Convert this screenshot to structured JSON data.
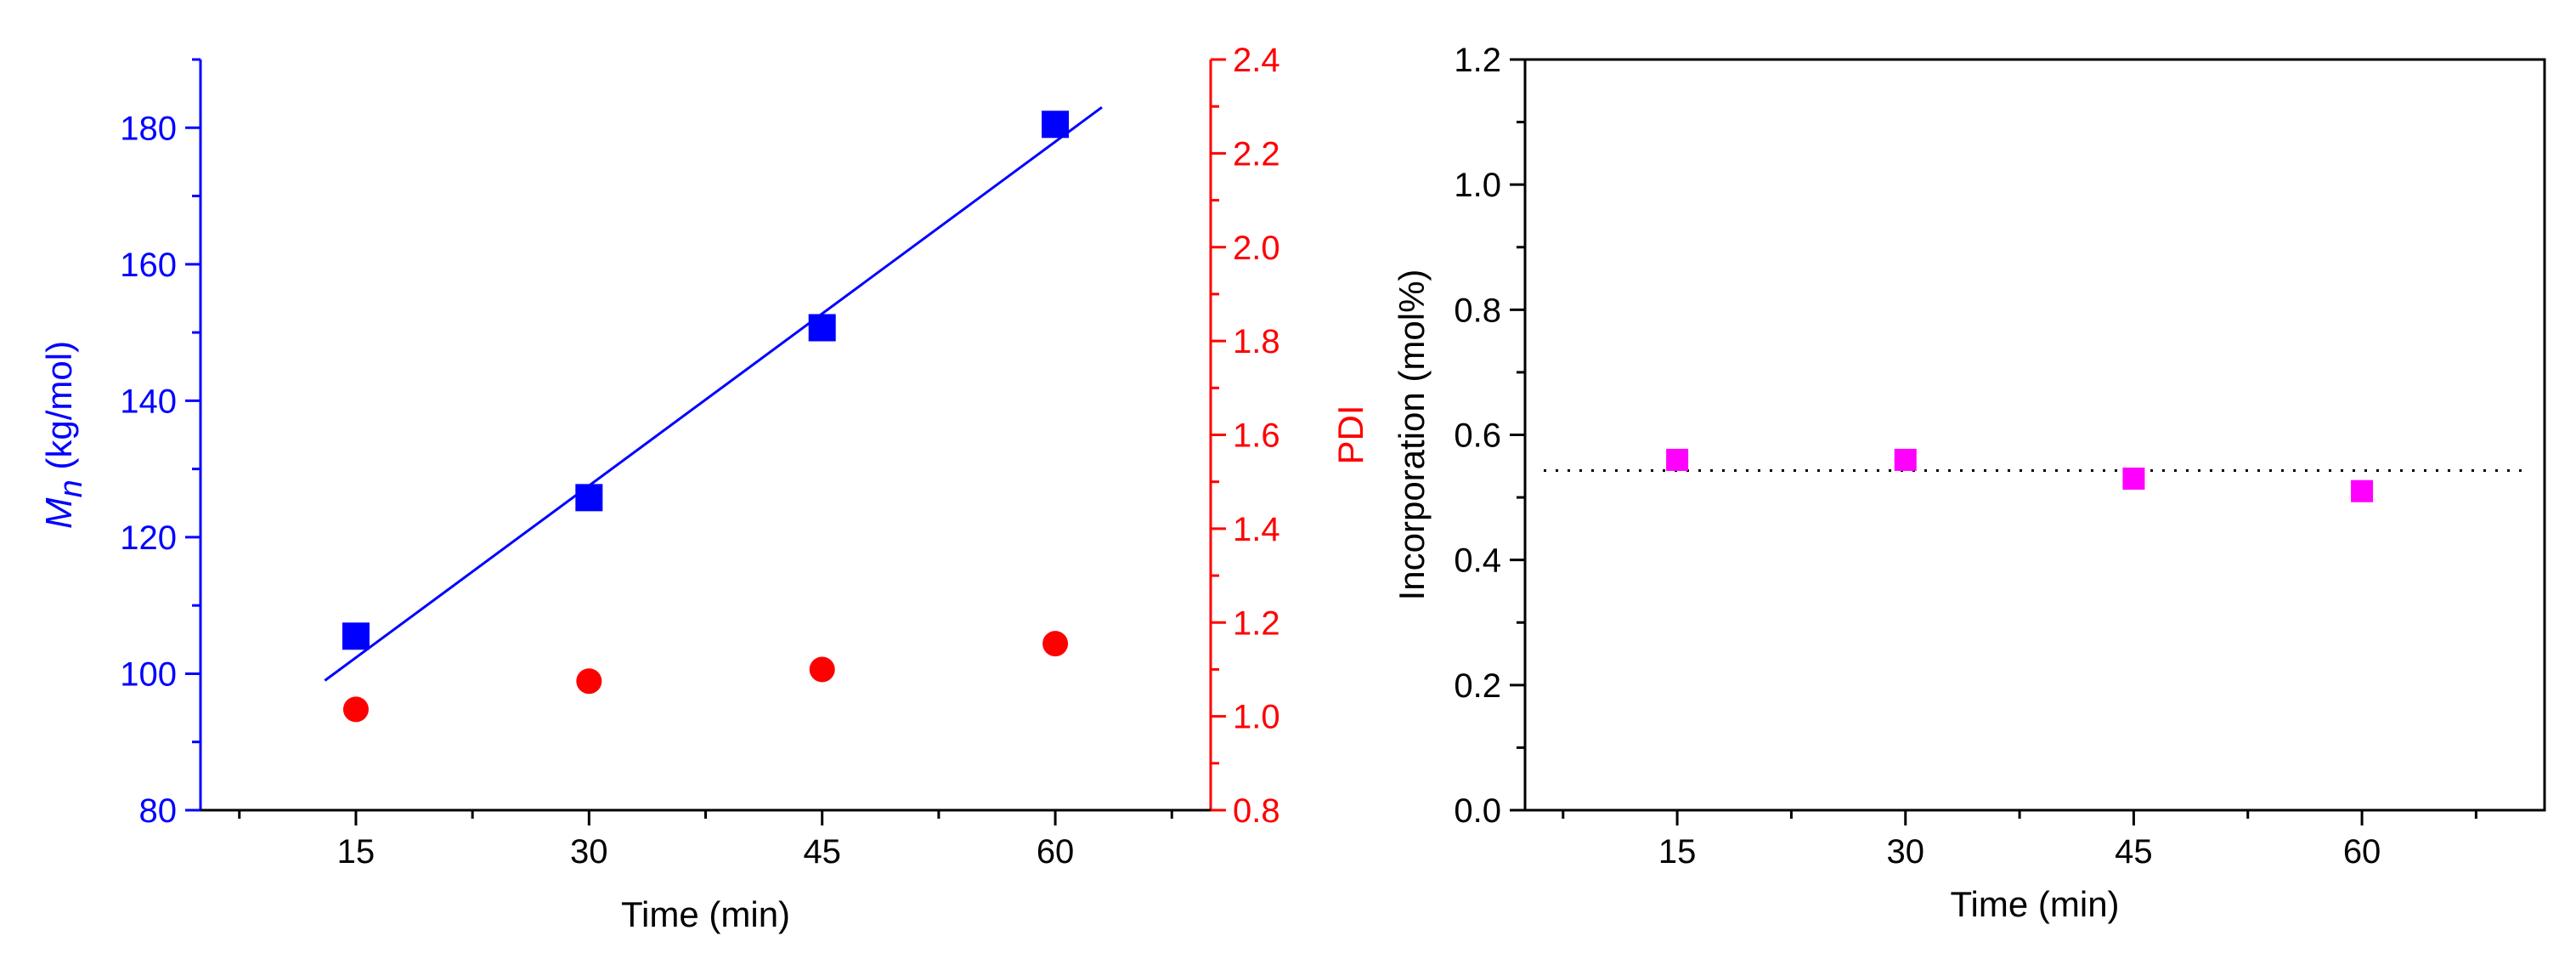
{
  "chart_data": [
    {
      "type": "scatter",
      "xlabel": "Time (min)",
      "ylabel_italic": "M",
      "ylabel_sub": "n",
      "ylabel_rest": " (kg/mol)",
      "y2label": "PDI",
      "xlim": [
        5,
        70
      ],
      "ylim": [
        80,
        190
      ],
      "y2lim": [
        0.8,
        2.4
      ],
      "xticks": [
        15,
        30,
        45,
        60
      ],
      "yticks": [
        80,
        100,
        120,
        140,
        160,
        180
      ],
      "y2ticks": [
        0.8,
        1.0,
        1.2,
        1.4,
        1.6,
        1.8,
        2.0,
        2.2,
        2.4
      ],
      "colors": {
        "mn": "#0000ff",
        "pdi": "#ff0000",
        "frame": "#000000"
      },
      "series": [
        {
          "axis": "left",
          "marker": "square",
          "x": [
            15,
            30,
            45,
            60
          ],
          "values": [
            105.5,
            125.8,
            150.7,
            180.5
          ]
        },
        {
          "axis": "right",
          "marker": "circle",
          "x": [
            15,
            30,
            45,
            60
          ],
          "values": [
            1.015,
            1.075,
            1.1,
            1.155
          ]
        }
      ],
      "fit_line": {
        "x": [
          13,
          63
        ],
        "y": [
          99,
          183
        ]
      }
    },
    {
      "type": "scatter",
      "xlabel": "Time (min)",
      "ylabel": "Incorporation (mol%)",
      "xlim": [
        5,
        72
      ],
      "ylim": [
        0.0,
        1.2
      ],
      "xticks": [
        15,
        30,
        45,
        60
      ],
      "yticks": [
        0.0,
        0.2,
        0.4,
        0.6,
        0.8,
        1.0,
        1.2
      ],
      "colors": {
        "points": "#ff00ff",
        "frame": "#000000"
      },
      "series": [
        {
          "marker": "square",
          "x": [
            15,
            30,
            45,
            60
          ],
          "values": [
            0.56,
            0.56,
            0.53,
            0.51
          ]
        }
      ],
      "mean_line": {
        "y": 0.543,
        "style": "dotted"
      }
    }
  ]
}
